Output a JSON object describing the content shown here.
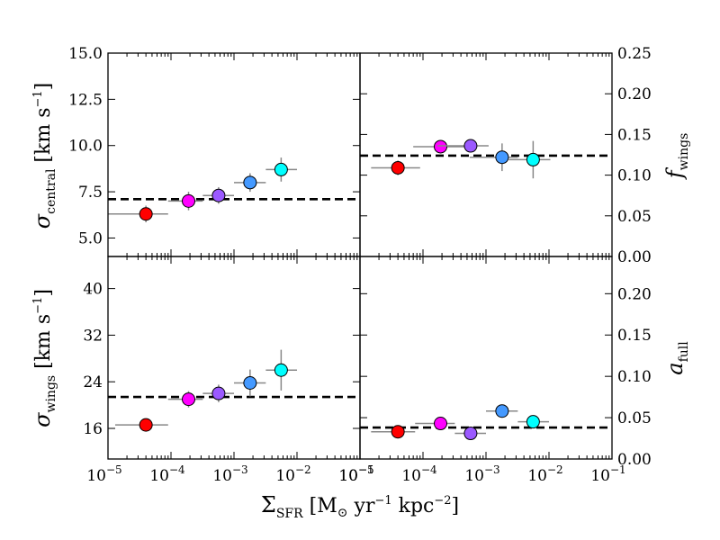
{
  "figure": {
    "xlabel": "Σ_SFR [M⊙ yr⁻¹ kpc⁻²]"
  },
  "chart_data": [
    {
      "type": "scatter",
      "panel": "top-left",
      "xscale": "log",
      "xlim": [
        1e-05,
        0.1
      ],
      "ylim": [
        4.0,
        15.0
      ],
      "yticks": [
        5.0,
        7.5,
        10.0,
        12.5,
        15.0
      ],
      "ytick_labels": [
        "5.0",
        "7.5",
        "10.0",
        "12.5",
        "15.0"
      ],
      "ytick_side": "left",
      "ylabel": "σ_central [km s⁻¹]",
      "reference_line": 7.1,
      "points": [
        {
          "x": 4e-05,
          "y": 6.3,
          "xlo": 1e-05,
          "xhi": 9e-05,
          "yerr": 0.45,
          "color": "#ff0000"
        },
        {
          "x": 0.00019,
          "y": 7.0,
          "xlo": 9e-05,
          "xhi": 0.00032,
          "yerr": 0.5,
          "color": "#ff00ff"
        },
        {
          "x": 0.00057,
          "y": 7.3,
          "xlo": 0.00032,
          "xhi": 0.001,
          "yerr": 0.45,
          "color": "#9b59ff"
        },
        {
          "x": 0.0018,
          "y": 8.0,
          "xlo": 0.001,
          "xhi": 0.0032,
          "yerr": 0.5,
          "color": "#4499ff"
        },
        {
          "x": 0.0056,
          "y": 8.7,
          "xlo": 0.0032,
          "xhi": 0.01,
          "yerr": 0.65,
          "color": "#00ffff"
        }
      ]
    },
    {
      "type": "scatter",
      "panel": "top-right",
      "xscale": "log",
      "xlim": [
        1e-05,
        0.1
      ],
      "ylim": [
        0.0,
        0.25
      ],
      "yticks": [
        0.0,
        0.05,
        0.1,
        0.15,
        0.2,
        0.25
      ],
      "ytick_labels": [
        "0.00",
        "0.05",
        "0.10",
        "0.15",
        "0.20",
        "0.25"
      ],
      "ytick_side": "right",
      "ylabel": "f_wings",
      "reference_line": 0.124,
      "points": [
        {
          "x": 4e-05,
          "y": 0.109,
          "xlo": 1.5e-05,
          "xhi": 9e-05,
          "yerr": 0.009,
          "color": "#ff0000"
        },
        {
          "x": 0.00019,
          "y": 0.135,
          "xlo": 7e-05,
          "xhi": 0.00055,
          "yerr": 0.007,
          "color": "#ff00ff"
        },
        {
          "x": 0.00057,
          "y": 0.136,
          "xlo": 0.00017,
          "xhi": 0.0011,
          "yerr": 0.008,
          "color": "#9b59ff"
        },
        {
          "x": 0.0018,
          "y": 0.122,
          "xlo": 0.00055,
          "xhi": 0.0032,
          "yerr": 0.017,
          "color": "#4499ff"
        },
        {
          "x": 0.0056,
          "y": 0.119,
          "xlo": 0.0023,
          "xhi": 0.0105,
          "yerr": 0.023,
          "color": "#00ffff"
        }
      ]
    },
    {
      "type": "scatter",
      "panel": "bottom-left",
      "xscale": "log",
      "xlim": [
        1e-05,
        0.1
      ],
      "ylim": [
        10.75,
        45.5
      ],
      "yticks": [
        16,
        24,
        32,
        40
      ],
      "ytick_labels": [
        "16",
        "24",
        "32",
        "40"
      ],
      "ytick_side": "left",
      "ylabel": "σ_wings [km s⁻¹]",
      "reference_line": 21.4,
      "xtick_labels": [
        "10⁻⁵",
        "10⁻⁴",
        "10⁻³",
        "10⁻²",
        "10⁻¹"
      ],
      "points": [
        {
          "x": 4e-05,
          "y": 16.6,
          "xlo": 1.3e-05,
          "xhi": 9e-05,
          "yerr": 1.0,
          "color": "#ff0000"
        },
        {
          "x": 0.00019,
          "y": 21.0,
          "xlo": 9e-05,
          "xhi": 0.00032,
          "yerr": 1.4,
          "color": "#ff00ff"
        },
        {
          "x": 0.00057,
          "y": 22.0,
          "xlo": 0.00032,
          "xhi": 0.001,
          "yerr": 1.5,
          "color": "#9b59ff"
        },
        {
          "x": 0.0018,
          "y": 23.8,
          "xlo": 0.001,
          "xhi": 0.0032,
          "yerr": 2.3,
          "color": "#4499ff"
        },
        {
          "x": 0.0056,
          "y": 26.0,
          "xlo": 0.0032,
          "xhi": 0.01,
          "yerr": 3.5,
          "color": "#00ffff"
        }
      ]
    },
    {
      "type": "scatter",
      "panel": "bottom-right",
      "xscale": "log",
      "xlim": [
        1e-05,
        0.1
      ],
      "ylim": [
        0.0,
        0.245
      ],
      "yticks": [
        0.0,
        0.05,
        0.1,
        0.15,
        0.2
      ],
      "ytick_labels": [
        "0.00",
        "0.05",
        "0.10",
        "0.15",
        "0.20"
      ],
      "ytick_side": "right",
      "ylabel": "a_full",
      "reference_line": 0.038,
      "xtick_labels": [
        "10⁻⁵",
        "10⁻⁴",
        "10⁻³",
        "10⁻²",
        "10⁻¹"
      ],
      "points": [
        {
          "x": 4e-05,
          "y": 0.033,
          "xlo": 1.5e-05,
          "xhi": 7.5e-05,
          "yerr": 0.004,
          "color": "#ff0000"
        },
        {
          "x": 0.00019,
          "y": 0.043,
          "xlo": 7.5e-05,
          "xhi": 0.00032,
          "yerr": 0.0,
          "color": "#ff00ff"
        },
        {
          "x": 0.00057,
          "y": 0.031,
          "xlo": 0.00032,
          "xhi": 0.001,
          "yerr": 0.0,
          "color": "#9b59ff"
        },
        {
          "x": 0.0018,
          "y": 0.058,
          "xlo": 0.001,
          "xhi": 0.0032,
          "yerr": 0.0,
          "color": "#4499ff"
        },
        {
          "x": 0.0056,
          "y": 0.045,
          "xlo": 0.0032,
          "xhi": 0.01,
          "yerr": 0.0,
          "color": "#00ffff"
        }
      ]
    }
  ]
}
